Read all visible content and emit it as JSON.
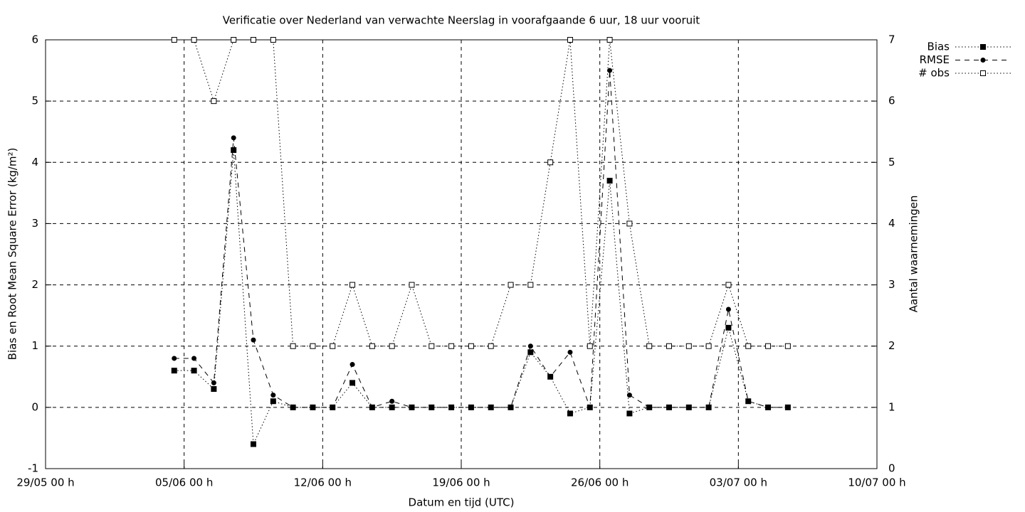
{
  "chart_data": {
    "type": "line",
    "title": "Verificatie over Nederland van verwachte Neerslag in voorafgaande 6 uur, 18 uur vooruit",
    "xlabel": "Datum en tijd (UTC)",
    "ylabel": "Bias en Root Mean Square Error (kg/m²)",
    "y2label": "Aantal waarnemingen",
    "x": [
      "04/06 12 h",
      "05/06 12 h",
      "06/06 12 h",
      "07/06 12 h",
      "08/06 12 h",
      "09/06 12 h",
      "10/06 12 h",
      "11/06 12 h",
      "12/06 12 h",
      "13/06 12 h",
      "14/06 12 h",
      "15/06 12 h",
      "16/06 12 h",
      "17/06 12 h",
      "18/06 12 h",
      "19/06 12 h",
      "20/06 12 h",
      "21/06 12 h",
      "22/06 12 h",
      "23/06 12 h",
      "24/06 12 h",
      "25/06 12 h",
      "26/06 12 h",
      "27/06 12 h",
      "28/06 12 h",
      "29/06 12 h",
      "30/06 12 h",
      "01/07 12 h",
      "02/07 12 h",
      "03/07 12 h",
      "04/07 12 h",
      "05/07 12 h"
    ],
    "series": [
      {
        "name": "Bias",
        "color": "#000000",
        "linestyle": "dotted",
        "marker": "filled-square",
        "values": [
          0.6,
          0.6,
          0.3,
          4.2,
          -0.6,
          0.1,
          0,
          0,
          0,
          0.4,
          0,
          0,
          0,
          0,
          0,
          0,
          0,
          0,
          0.9,
          0.5,
          -0.1,
          0,
          3.7,
          -0.1,
          0,
          0,
          0,
          0,
          1.3,
          0.1,
          0,
          0
        ]
      },
      {
        "name": "RMSE",
        "color": "#000000",
        "linestyle": "dashed",
        "marker": "filled-circle",
        "values": [
          0.8,
          0.8,
          0.4,
          4.4,
          1.1,
          0.2,
          0,
          0,
          0,
          0.7,
          0,
          0.1,
          0,
          0,
          0,
          0,
          0,
          0,
          1.0,
          0.5,
          0.9,
          0,
          5.5,
          0.2,
          0,
          0,
          0,
          0,
          1.6,
          0.1,
          0,
          0
        ]
      },
      {
        "name": "# obs",
        "color": "#000000",
        "linestyle": "dotted",
        "marker": "open-square",
        "axis": "y2",
        "values": [
          7,
          7,
          6,
          7,
          7,
          7,
          2,
          2,
          2,
          3,
          2,
          2,
          3,
          2,
          2,
          2,
          2,
          3,
          3,
          5,
          7,
          2,
          7,
          4,
          2,
          2,
          2,
          2,
          3,
          2,
          2,
          2
        ]
      }
    ],
    "xlim": [
      "29/05 00 h",
      "10/07 00 h"
    ],
    "xticks": [
      "29/05 00 h",
      "05/06 00 h",
      "12/06 00 h",
      "19/06 00 h",
      "26/06 00 h",
      "03/07 00 h",
      "10/07 00 h"
    ],
    "ylim": [
      -1,
      6
    ],
    "yticks": [
      -1,
      0,
      1,
      2,
      3,
      4,
      5,
      6
    ],
    "y2lim": [
      0,
      7
    ],
    "y2ticks": [
      0,
      1,
      2,
      3,
      4,
      5,
      6,
      7
    ],
    "grid": true,
    "legend": "outside-top-right"
  }
}
